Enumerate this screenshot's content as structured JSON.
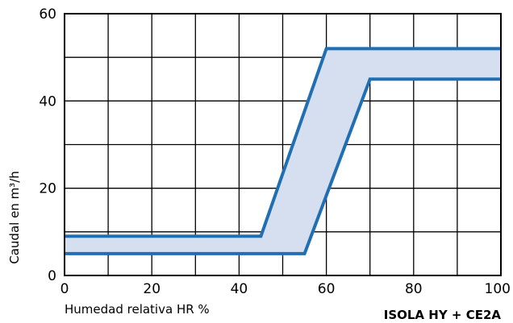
{
  "chart_data": {
    "type": "area",
    "title": "",
    "product_label": "ISOLA HY + CE2A",
    "xlabel": "Humedad relativa HR %",
    "ylabel": "Caudal en m³/h",
    "xlim": [
      0,
      100
    ],
    "ylim": [
      0,
      60
    ],
    "x_ticks": [
      0,
      20,
      40,
      60,
      80,
      100
    ],
    "y_ticks": [
      0,
      20,
      40,
      60
    ],
    "x_grid_step": 10,
    "y_grid_step": 10,
    "grid": true,
    "band_fill_color": "#d6dff0",
    "line_color": "#1f6fb2",
    "series": [
      {
        "x": [
          0,
          45,
          60,
          100
        ],
        "y": [
          9,
          9,
          52,
          52
        ]
      },
      {
        "x": [
          0,
          55,
          70,
          100
        ],
        "y": [
          5,
          5,
          45,
          45
        ]
      }
    ]
  }
}
